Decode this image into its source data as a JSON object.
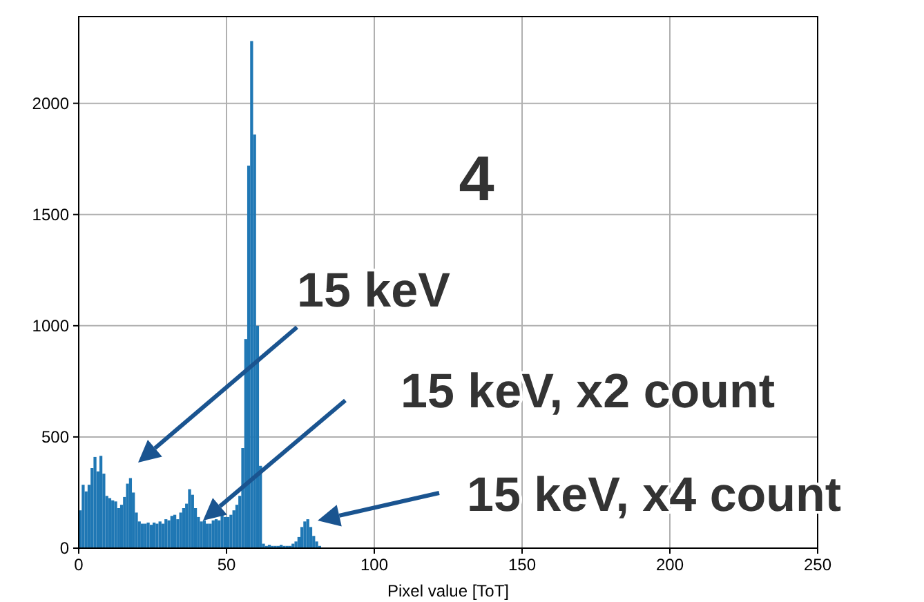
{
  "chart_data": {
    "type": "histogram",
    "xlabel": "Pixel value [ToT]",
    "color": "#1f77b4",
    "bins": [
      0,
      1,
      2,
      3,
      4,
      5,
      6,
      7,
      8,
      9,
      10,
      11,
      12,
      13,
      14,
      15,
      16,
      17,
      18,
      19,
      20,
      21,
      22,
      23,
      24,
      25,
      26,
      27,
      28,
      29,
      30,
      31,
      32,
      33,
      34,
      35,
      36,
      37,
      38,
      39,
      40,
      41,
      42,
      43,
      44,
      45,
      46,
      47,
      48,
      49,
      50,
      51,
      52,
      53,
      54,
      55,
      56,
      57,
      58,
      59,
      60,
      61,
      62,
      63,
      64,
      65,
      66,
      67,
      68,
      69,
      70,
      71,
      72,
      73,
      74,
      75,
      76,
      77,
      78,
      79,
      80,
      81,
      82,
      83,
      84,
      85,
      86,
      87,
      88,
      89,
      90,
      91,
      92,
      93,
      94,
      95,
      96,
      97,
      98,
      99,
      100,
      101,
      102,
      103,
      104,
      105,
      106,
      107,
      108,
      109,
      110,
      111,
      112,
      113,
      114,
      115,
      116,
      117,
      118,
      119,
      120,
      121,
      122,
      123,
      124,
      125,
      126,
      127,
      128,
      129,
      130,
      131,
      132,
      133,
      134
    ],
    "values": [
      170,
      285,
      255,
      285,
      360,
      410,
      345,
      415,
      335,
      235,
      225,
      215,
      210,
      180,
      195,
      230,
      290,
      315,
      250,
      160,
      120,
      110,
      110,
      115,
      105,
      115,
      110,
      120,
      110,
      130,
      125,
      145,
      150,
      130,
      160,
      180,
      200,
      265,
      240,
      180,
      140,
      120,
      125,
      110,
      110,
      125,
      130,
      125,
      150,
      140,
      140,
      150,
      170,
      195,
      235,
      450,
      940,
      1720,
      2280,
      1860,
      1000,
      370,
      20,
      10,
      15,
      10,
      10,
      10,
      15,
      10,
      10,
      10,
      20,
      30,
      50,
      95,
      120,
      130,
      95,
      55,
      30,
      10,
      3,
      3,
      3,
      3,
      3,
      3,
      3,
      3,
      3,
      3,
      3,
      3,
      3,
      3,
      3,
      3,
      3,
      3,
      3,
      3,
      3,
      3,
      3,
      3,
      3,
      3,
      3,
      3,
      3,
      3,
      3,
      3,
      3,
      3,
      3,
      3,
      3,
      3,
      3,
      3,
      3,
      3,
      3,
      3,
      3,
      3,
      3,
      3,
      3,
      3,
      3,
      3
    ],
    "xlim": [
      0,
      250
    ],
    "ylim": [
      0,
      2390
    ],
    "xticks": [
      0,
      50,
      100,
      150,
      200,
      250
    ],
    "yticks": [
      0,
      500,
      1000,
      1500,
      2000
    ],
    "grid": true,
    "annotations": [
      "4",
      "15 keV",
      "15 keV, x2 count",
      "15 keV, x4 count"
    ]
  }
}
